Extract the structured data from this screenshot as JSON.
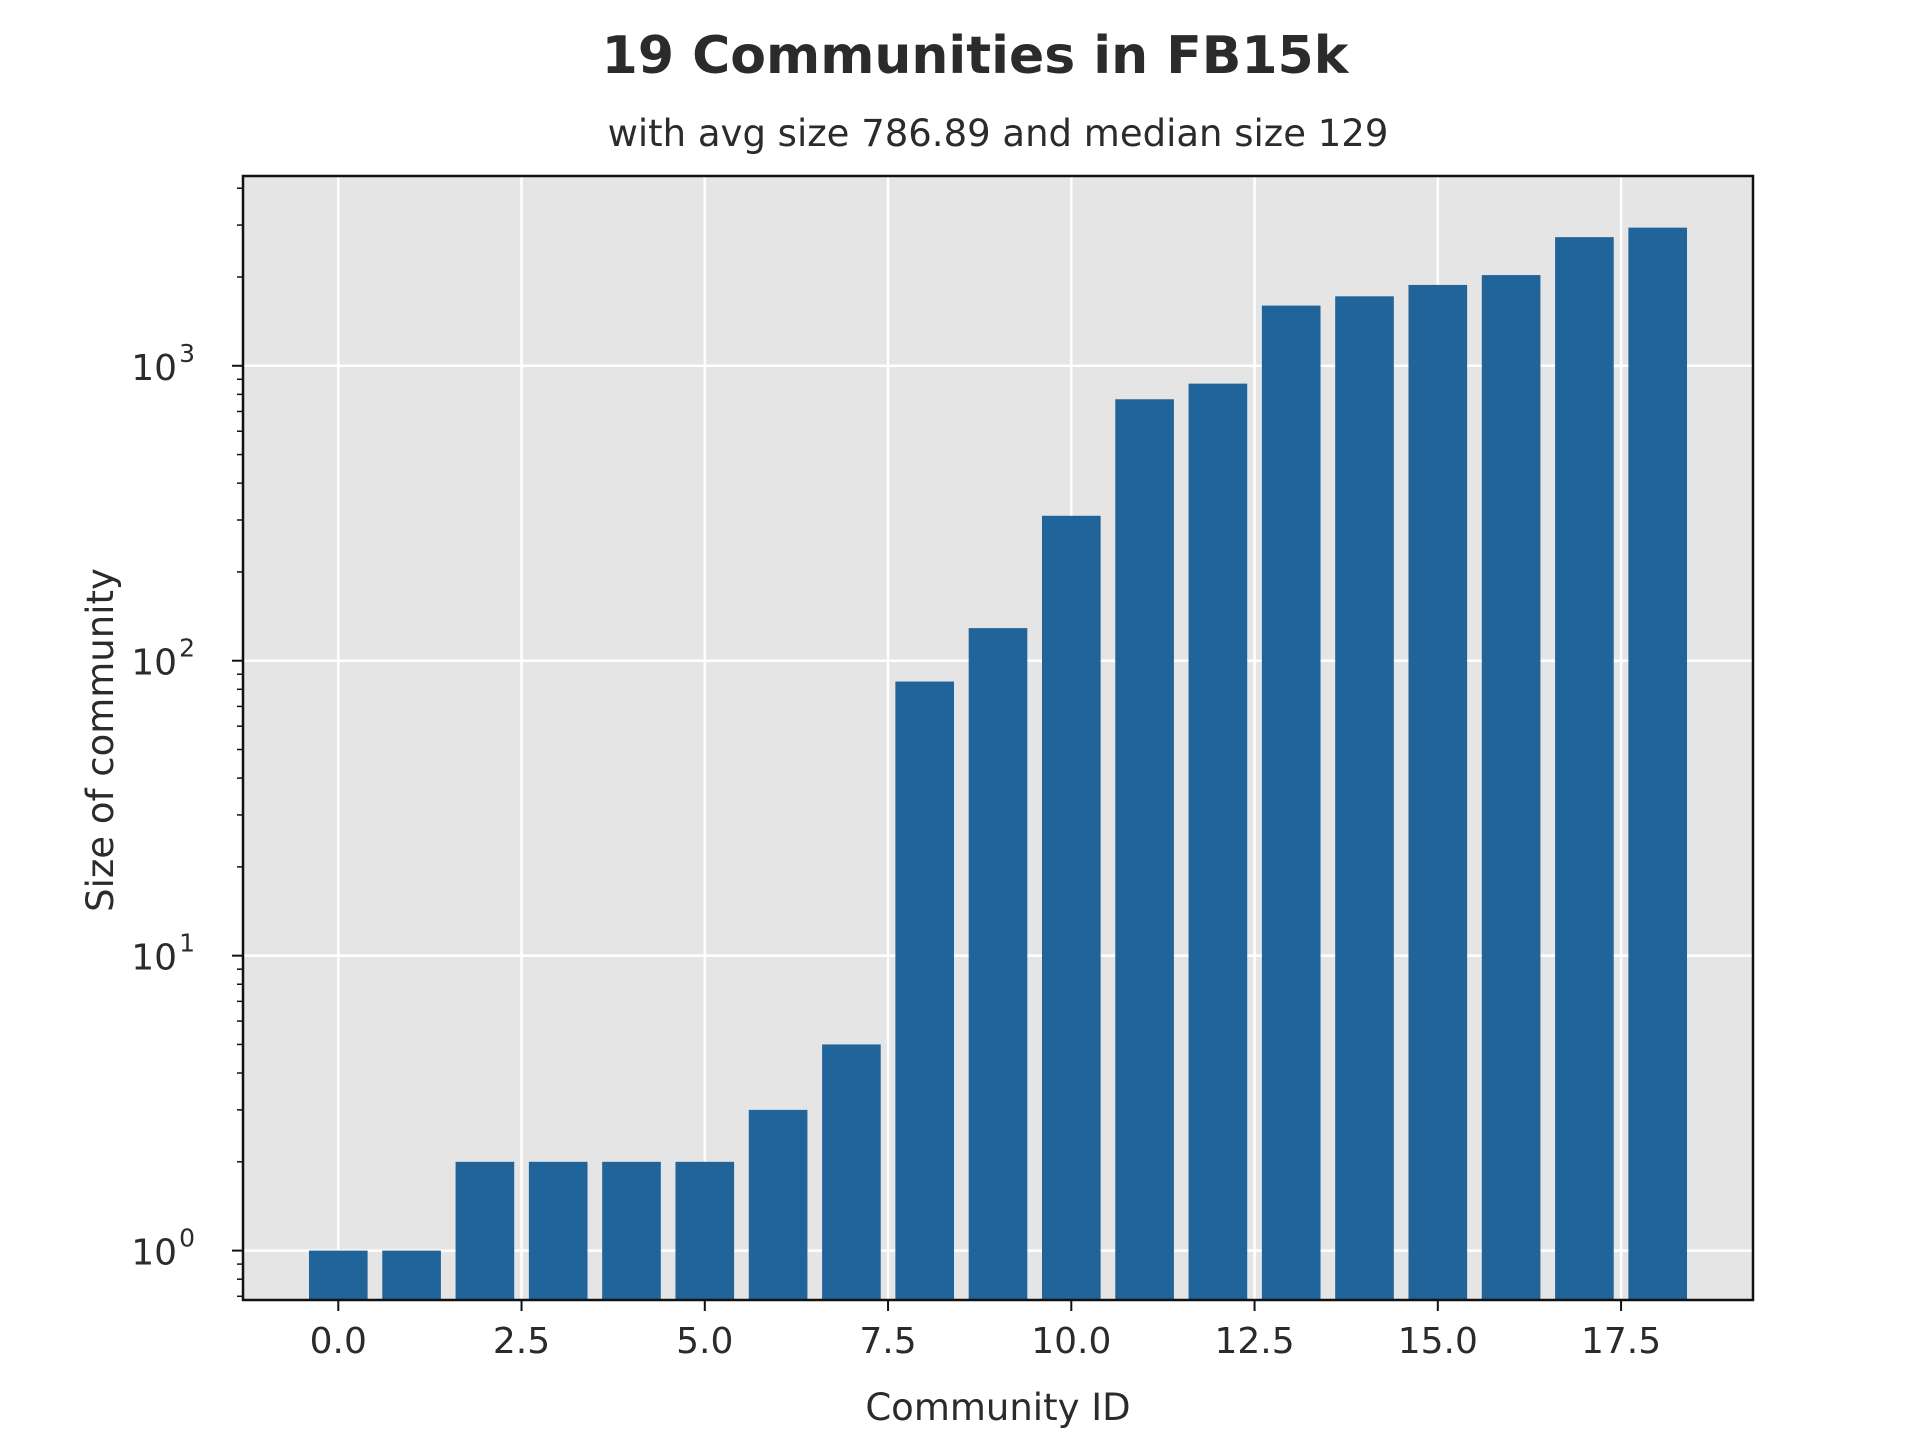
{
  "chart_data": {
    "type": "bar",
    "title": "19 Communities in FB15k",
    "subtitle": "with avg size 786.89 and median size 129",
    "xlabel": "Community ID",
    "ylabel": "Size of community",
    "yscale": "log",
    "grid": true,
    "x": [
      0,
      1,
      2,
      3,
      4,
      5,
      6,
      7,
      8,
      9,
      10,
      11,
      12,
      13,
      14,
      15,
      16,
      17,
      18
    ],
    "values": [
      1,
      1,
      2,
      2,
      2,
      2,
      3,
      5,
      85,
      129,
      310,
      770,
      870,
      1600,
      1720,
      1880,
      2030,
      2730,
      2940
    ],
    "xlim": [
      -1.3,
      19.3
    ],
    "ylim": [
      0.68,
      4400
    ],
    "xticks": [
      0.0,
      2.5,
      5.0,
      7.5,
      10.0,
      12.5,
      15.0,
      17.5
    ],
    "xtick_labels": [
      "0.0",
      "2.5",
      "5.0",
      "7.5",
      "10.0",
      "12.5",
      "15.0",
      "17.5"
    ],
    "yticks": [
      1,
      10,
      100,
      1000
    ],
    "ytick_labels": [
      {
        "base": "10",
        "exp": "0"
      },
      {
        "base": "10",
        "exp": "1"
      },
      {
        "base": "10",
        "exp": "2"
      },
      {
        "base": "10",
        "exp": "3"
      }
    ],
    "colors": {
      "bar": "#21649a",
      "plot_background": "#e5e5e5",
      "grid": "#ffffff",
      "text": "#2b2b2b"
    }
  }
}
